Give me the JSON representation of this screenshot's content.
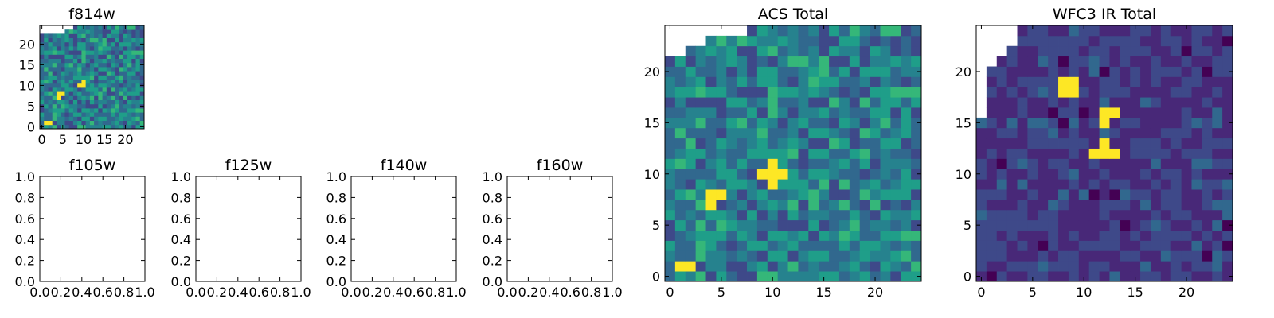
{
  "colormap": {
    "name": "viridis",
    "stops": [
      "#440154",
      "#482878",
      "#3e4989",
      "#31688e",
      "#26828e",
      "#1f9e89",
      "#35b779",
      "#6ece58",
      "#b5de2b",
      "#fde725"
    ]
  },
  "chart_data": [
    {
      "id": "f814w",
      "type": "heatmap",
      "title": "f814w",
      "xlim": [
        -0.5,
        24.5
      ],
      "ylim": [
        -0.5,
        24.5
      ],
      "xticks": [
        "0",
        "5",
        "10",
        "15",
        "20"
      ],
      "yticks": [
        "0",
        "5",
        "10",
        "15",
        "20"
      ],
      "seed": 7,
      "missing_corner": [
        [
          0,
          2
        ],
        [
          6,
          1
        ],
        [
          8,
          0
        ]
      ],
      "hotspots": [
        [
          1,
          1
        ],
        [
          2,
          1
        ],
        [
          4,
          7
        ],
        [
          5,
          8
        ],
        [
          4,
          8
        ],
        [
          10,
          10
        ],
        [
          9,
          10
        ],
        [
          10,
          11
        ]
      ]
    },
    {
      "id": "f105w",
      "type": "empty",
      "title": "f105w",
      "xticks": [
        "0.0",
        "0.2",
        "0.4",
        "0.6",
        "0.8",
        "1.0"
      ],
      "yticks": [
        "0.0",
        "0.2",
        "0.4",
        "0.6",
        "0.8",
        "1.0"
      ]
    },
    {
      "id": "f125w",
      "type": "empty",
      "title": "f125w",
      "xticks": [
        "0.0",
        "0.2",
        "0.4",
        "0.6",
        "0.8",
        "1.0"
      ],
      "yticks": [
        "0.0",
        "0.2",
        "0.4",
        "0.6",
        "0.8",
        "1.0"
      ]
    },
    {
      "id": "f140w",
      "type": "empty",
      "title": "f140w",
      "xticks": [
        "0.0",
        "0.2",
        "0.4",
        "0.6",
        "0.8",
        "1.0"
      ],
      "yticks": [
        "0.0",
        "0.2",
        "0.4",
        "0.6",
        "0.8",
        "1.0"
      ]
    },
    {
      "id": "f160w",
      "type": "empty",
      "title": "f160w",
      "xticks": [
        "0.0",
        "0.2",
        "0.4",
        "0.6",
        "0.8",
        "1.0"
      ],
      "yticks": [
        "0.0",
        "0.2",
        "0.4",
        "0.6",
        "0.8",
        "1.0"
      ]
    },
    {
      "id": "acs-total",
      "type": "heatmap",
      "title": "ACS Total",
      "xlim": [
        -0.5,
        24.5
      ],
      "ylim": [
        -0.5,
        24.5
      ],
      "xticks": [
        "0",
        "5",
        "10",
        "15",
        "20"
      ],
      "yticks": [
        "0",
        "5",
        "10",
        "15",
        "20"
      ],
      "seed": 7,
      "missing_corner": [
        [
          0,
          3
        ],
        [
          2,
          2
        ],
        [
          4,
          1
        ],
        [
          8,
          0
        ]
      ],
      "hotspots": [
        [
          1,
          1
        ],
        [
          2,
          1
        ],
        [
          4,
          7
        ],
        [
          4,
          8
        ],
        [
          5,
          8
        ],
        [
          9,
          10
        ],
        [
          10,
          10
        ],
        [
          10,
          11
        ],
        [
          11,
          10
        ],
        [
          10,
          9
        ]
      ]
    },
    {
      "id": "wfc3-ir-total",
      "type": "heatmap",
      "title": "WFC3 IR Total",
      "xlim": [
        -0.5,
        24.5
      ],
      "ylim": [
        -0.5,
        24.5
      ],
      "xticks": [
        "0",
        "5",
        "10",
        "15",
        "20"
      ],
      "yticks": [
        "0",
        "5",
        "10",
        "15",
        "20"
      ],
      "seed": 19,
      "missing_corner": [
        [
          0,
          9
        ],
        [
          1,
          4
        ],
        [
          2,
          3
        ],
        [
          3,
          2
        ],
        [
          4,
          0
        ]
      ],
      "hotspots": [
        [
          8,
          19
        ],
        [
          9,
          19
        ],
        [
          8,
          18
        ],
        [
          9,
          18
        ],
        [
          12,
          16
        ],
        [
          12,
          15
        ],
        [
          13,
          16
        ],
        [
          12,
          12
        ],
        [
          11,
          12
        ],
        [
          13,
          12
        ],
        [
          12,
          13
        ]
      ]
    }
  ]
}
